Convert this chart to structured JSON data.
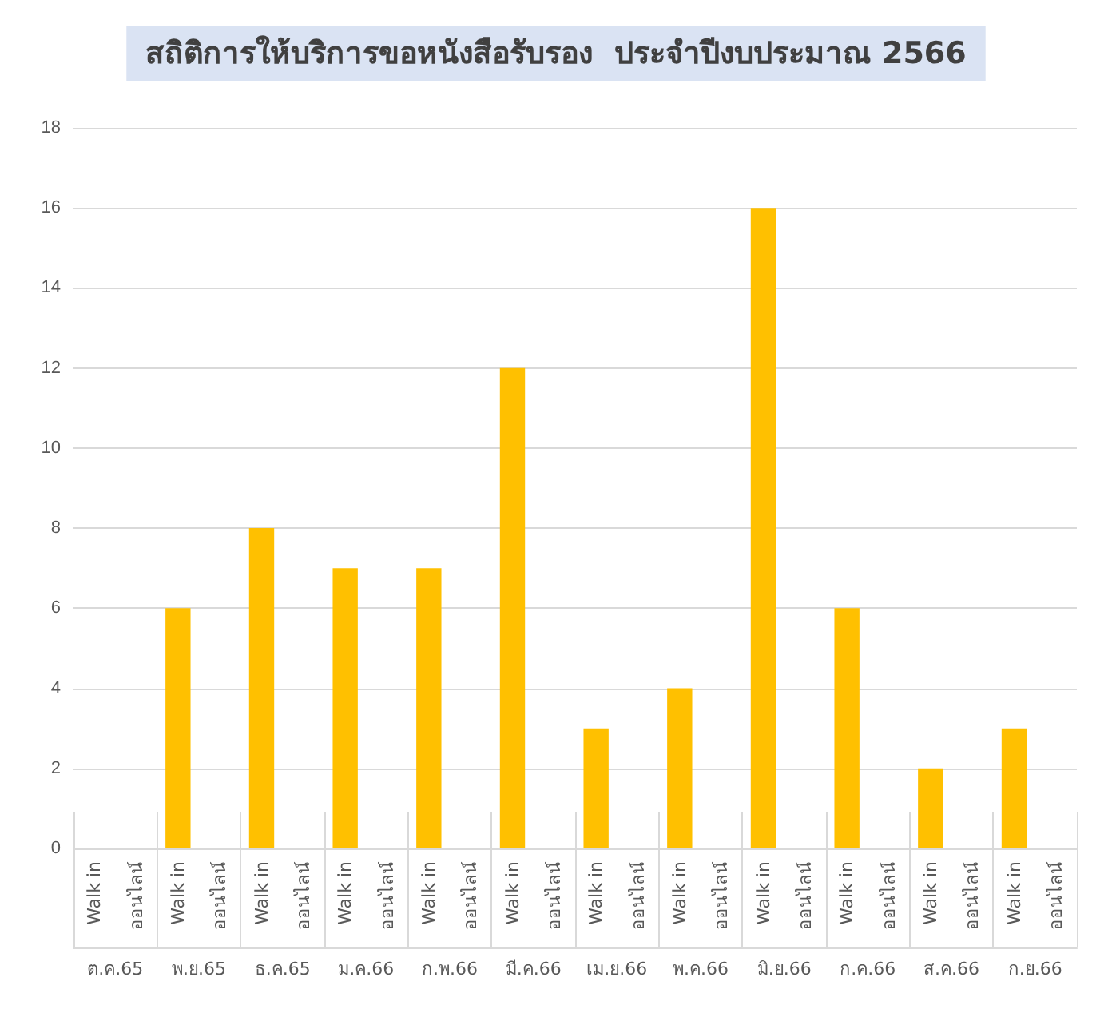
{
  "chart_data": {
    "type": "bar",
    "title": "สถิติการให้บริการขอหนังสือรับรอง  ประจำปีงบประมาณ 2566",
    "categories": [
      "ต.ค.65",
      "พ.ย.65",
      "ธ.ค.65",
      "ม.ค.66",
      "ก.พ.66",
      "มี.ค.66",
      "เม.ย.66",
      "พ.ค.66",
      "มิ.ย.66",
      "ก.ค.66",
      "ส.ค.66",
      "ก.ย.66"
    ],
    "series": [
      {
        "name": "Walk in",
        "color": "#ffc000",
        "values": [
          0,
          6,
          8,
          7,
          7,
          12,
          3,
          4,
          16,
          6,
          2,
          3
        ]
      },
      {
        "name": "ออนไลน์",
        "values": [
          0,
          0,
          0,
          0,
          0,
          0,
          0,
          0,
          0,
          0,
          0,
          0
        ]
      }
    ],
    "ylim": [
      0,
      18
    ],
    "yticks": [
      0,
      2,
      4,
      6,
      8,
      10,
      12,
      14,
      16,
      18
    ],
    "grid": "y",
    "legend": false
  }
}
